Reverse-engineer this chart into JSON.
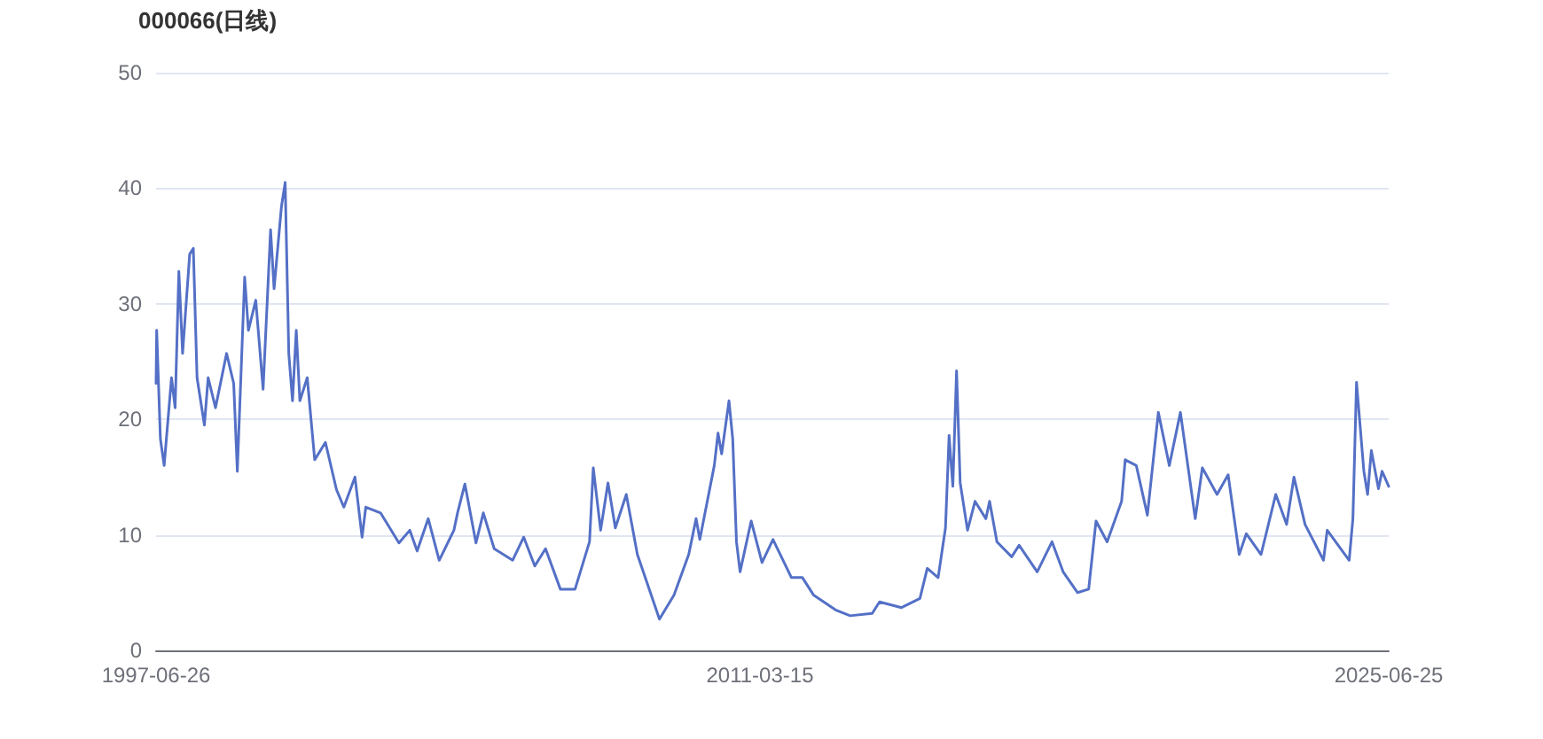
{
  "chart_data": {
    "type": "line",
    "title": "000066(日线)",
    "x": [
      "1997-06-26",
      "1997-07",
      "1997-08",
      "1997-09",
      "1997-11",
      "1997-12",
      "1998-01",
      "1998-02",
      "1998-04",
      "1998-05",
      "1998-06",
      "1998-08",
      "1998-09",
      "1998-11",
      "1999-02",
      "1999-04",
      "1999-05",
      "1999-07",
      "1999-08",
      "1999-10",
      "1999-12",
      "2000-02",
      "2000-03",
      "2000-05",
      "2000-06",
      "2000-07",
      "2000-08",
      "2000-09",
      "2000-10",
      "2000-12",
      "2001-02",
      "2001-05",
      "2001-08",
      "2001-10",
      "2002-01",
      "2002-03",
      "2002-04",
      "2002-08",
      "2003-01",
      "2003-04",
      "2003-06",
      "2003-09",
      "2003-12",
      "2004-04",
      "2004-05",
      "2004-07",
      "2004-10",
      "2004-12",
      "2005-03",
      "2005-08",
      "2005-11",
      "2006-02",
      "2006-05",
      "2006-09",
      "2007-01",
      "2007-05",
      "2007-06",
      "2007-08",
      "2007-10",
      "2007-12",
      "2008-03",
      "2008-06",
      "2008-12",
      "2009-04",
      "2009-08",
      "2009-10",
      "2009-11",
      "2010-03",
      "2010-04",
      "2010-05",
      "2010-07",
      "2010-08",
      "2010-09",
      "2010-10",
      "2011-01",
      "2011-04",
      "2011-07",
      "2011-12",
      "2012-03",
      "2012-06",
      "2012-12",
      "2013-04",
      "2013-10",
      "2013-12",
      "2014-06",
      "2014-11",
      "2015-01",
      "2015-04",
      "2015-06",
      "2015-07",
      "2015-08",
      "2015-09",
      "2015-10",
      "2015-12",
      "2016-02",
      "2016-05",
      "2016-06",
      "2016-08",
      "2016-12",
      "2017-02",
      "2017-07",
      "2017-11",
      "2018-02",
      "2018-06",
      "2018-09",
      "2018-11",
      "2019-02",
      "2019-06",
      "2019-07",
      "2019-10",
      "2020-01",
      "2020-04",
      "2020-07",
      "2020-10",
      "2021-02",
      "2021-04",
      "2021-08",
      "2021-11",
      "2022-02",
      "2022-04",
      "2022-08",
      "2022-12",
      "2023-03",
      "2023-05",
      "2023-08",
      "2024-01",
      "2024-02",
      "2024-08",
      "2024-09",
      "2024-10",
      "2024-12",
      "2025-01",
      "2025-02",
      "2025-04",
      "2025-05",
      "2025-06-25"
    ],
    "series": [
      {
        "color": "#5470c6",
        "values": [
          23.1,
          27.7,
          18.3,
          16,
          23.6,
          21,
          32.8,
          25.7,
          34.3,
          34.8,
          23.6,
          19.5,
          23.6,
          21,
          25.7,
          23.1,
          15.5,
          32.3,
          27.7,
          30.3,
          22.6,
          36.4,
          31.3,
          38.4,
          40.5,
          25.7,
          21.6,
          27.7,
          21.6,
          23.6,
          16.5,
          18,
          13.9,
          12.4,
          15,
          9.8,
          12.4,
          11.9,
          9.3,
          10.4,
          8.6,
          11.4,
          7.8,
          10.4,
          11.9,
          14.4,
          9.3,
          11.9,
          8.8,
          7.8,
          9.8,
          7.3,
          8.8,
          5.3,
          5.3,
          9.4,
          15.8,
          10.4,
          14.5,
          10.6,
          13.5,
          8.3,
          2.7,
          4.8,
          8.3,
          11.4,
          9.6,
          16,
          18.8,
          17,
          21.6,
          18.3,
          9.4,
          6.8,
          11.2,
          7.6,
          9.6,
          6.3,
          6.3,
          4.8,
          3.5,
          3,
          3.2,
          4.2,
          3.7,
          4.5,
          7.1,
          6.3,
          10.6,
          18.6,
          14.2,
          24.2,
          14.5,
          10.4,
          12.9,
          11.4,
          12.9,
          9.4,
          8.1,
          9.1,
          6.8,
          9.4,
          6.8,
          5,
          5.3,
          11.2,
          9.4,
          12.9,
          16.5,
          16,
          11.7,
          20.6,
          16,
          20.6,
          11.4,
          15.8,
          13.5,
          15.2,
          8.3,
          10.1,
          8.3,
          13.5,
          10.9,
          15,
          10.9,
          7.8,
          10.4,
          7.8,
          11.4,
          23.2,
          15.5,
          13.5,
          17.3,
          14,
          15.5,
          14.2
        ]
      }
    ],
    "xlim": [
      "1997-06-26",
      "2025-06-25"
    ],
    "xticks": [
      "1997-06-26",
      "2011-03-15",
      "2025-06-25"
    ],
    "ylim": [
      0,
      50
    ],
    "yticks": [
      0,
      10,
      20,
      30,
      40,
      50
    ],
    "grid": "y",
    "marker": "none",
    "line_style": "solid"
  }
}
